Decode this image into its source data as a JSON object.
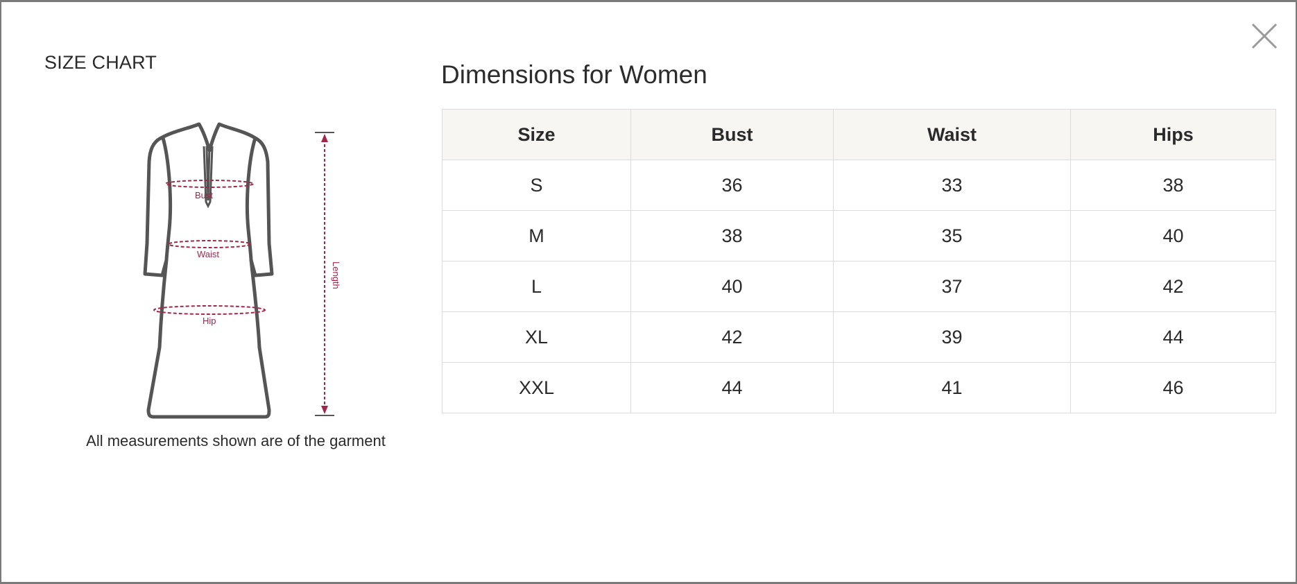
{
  "modal": {
    "left_title": "SIZE CHART",
    "right_title": "Dimensions for Women",
    "note": "All measurements shown are of the garment",
    "close_label": "×"
  },
  "diagram": {
    "labels": {
      "bust": "Bust",
      "waist": "Waist",
      "hip": "Hip",
      "length": "Length"
    },
    "accent_color": "#a3264a",
    "outline_color": "#555555"
  },
  "table": {
    "headers": [
      "Size",
      "Bust",
      "Waist",
      "Hips"
    ],
    "rows": [
      [
        "S",
        "36",
        "33",
        "38"
      ],
      [
        "M",
        "38",
        "35",
        "40"
      ],
      [
        "L",
        "40",
        "37",
        "42"
      ],
      [
        "XL",
        "42",
        "39",
        "44"
      ],
      [
        "XXL",
        "44",
        "41",
        "46"
      ]
    ]
  }
}
